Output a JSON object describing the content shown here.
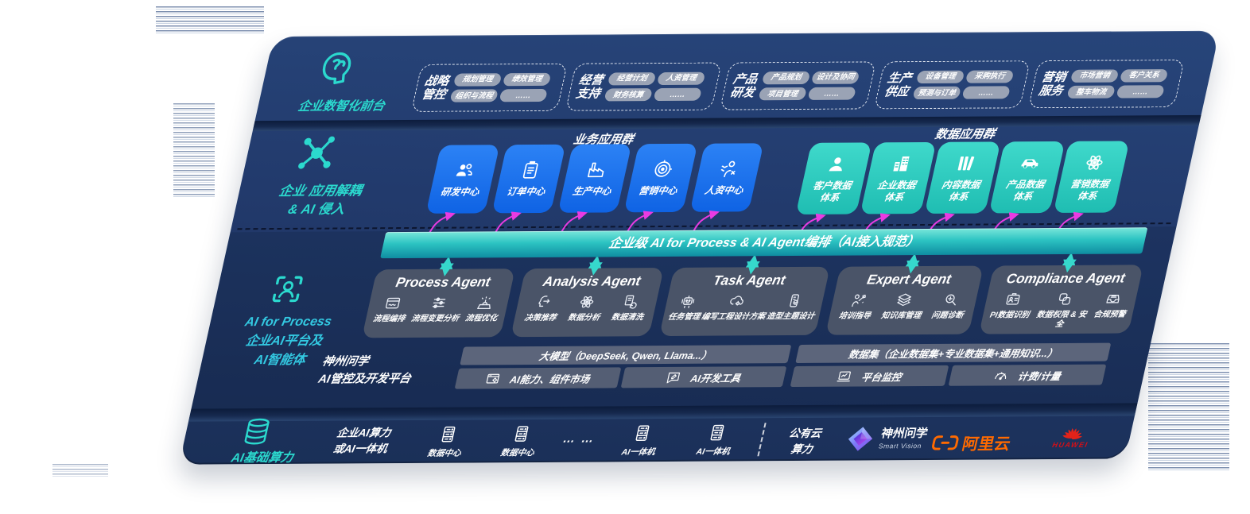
{
  "colors": {
    "navy": "#203A69",
    "teal_accent": "#2BD9CE",
    "blue_box": "#1570EF",
    "teal_box": "#2CCFC2",
    "magenta_arrow": "#EA3BE2",
    "bar_teal": "#2CC3C2",
    "panel_gray": "#4A5468",
    "chip_gray": "#9AA3B5",
    "alicloud_orange": "#FF6A00",
    "huawei_red": "#DA0E15"
  },
  "front_layer": {
    "label": "企业数智化前台",
    "icon": "brain-head-icon",
    "groups": [
      {
        "title": "战略\n管控",
        "items": [
          "规划管理",
          "绩效管理",
          "组织与流程",
          "……"
        ]
      },
      {
        "title": "经营\n支持",
        "items": [
          "经营计划",
          "人资管理",
          "财务核算",
          "……"
        ]
      },
      {
        "title": "产品\n研发",
        "items": [
          "产品规划",
          "设计及协同",
          "项目管理",
          "……"
        ]
      },
      {
        "title": "生产\n供应",
        "items": [
          "设备管理",
          "采购执行",
          "预测与订单",
          "……"
        ]
      },
      {
        "title": "营销\n服务",
        "items": [
          "市场营销",
          "客户关系",
          "整车物流",
          "……"
        ]
      }
    ]
  },
  "decouple_layer": {
    "label": "企业 应用解耦\n& AI 侵入",
    "icon": "molecule-icon",
    "business_group_title": "业务应用群",
    "data_group_title": "数据应用群",
    "business_apps": [
      {
        "label": "研发中心",
        "icon": "team-icon"
      },
      {
        "label": "订单中心",
        "icon": "clipboard-icon"
      },
      {
        "label": "生产中心",
        "icon": "factory-icon"
      },
      {
        "label": "营销中心",
        "icon": "target-icon"
      },
      {
        "label": "人资中心",
        "icon": "hr-icon"
      }
    ],
    "data_apps": [
      {
        "label": "客户数据\n体系",
        "icon": "user-icon"
      },
      {
        "label": "企业数据\n体系",
        "icon": "building-icon"
      },
      {
        "label": "内容数据\n体系",
        "icon": "content-icon"
      },
      {
        "label": "产品数据\n体系",
        "icon": "car-icon"
      },
      {
        "label": "营销数据\n体系",
        "icon": "atom-icon"
      }
    ]
  },
  "ai_bar": {
    "label": "企业级 AI for Process & AI Agent编排（AI接入规范）"
  },
  "process_layer": {
    "label": "AI for Process\n企业AI平台及\nAI智能体",
    "icon": "agent-frame-icon",
    "agents": [
      {
        "title": "Process Agent",
        "items": [
          {
            "label": "流程编排",
            "icon": "workflow-icon"
          },
          {
            "label": "流程变更分析",
            "icon": "sliders-icon"
          },
          {
            "label": "流程优化",
            "icon": "broom-icon"
          }
        ]
      },
      {
        "title": "Analysis Agent",
        "items": [
          {
            "label": "决策推荐",
            "icon": "decision-icon"
          },
          {
            "label": "数据分析",
            "icon": "atom-icon"
          },
          {
            "label": "数据清洗",
            "icon": "doc-clean-icon"
          }
        ]
      },
      {
        "title": "Task Agent",
        "items": [
          {
            "label": "任务管理",
            "icon": "robot-icon"
          },
          {
            "label": "编写工程设计方案",
            "icon": "cloud-gear-icon"
          },
          {
            "label": "造型主题设计",
            "icon": "phone-check-icon"
          }
        ]
      },
      {
        "title": "Expert Agent",
        "items": [
          {
            "label": "培训指导",
            "icon": "trainer-icon"
          },
          {
            "label": "知识库管理",
            "icon": "layers-icon"
          },
          {
            "label": "问题诊断",
            "icon": "diagnose-icon"
          }
        ]
      },
      {
        "title": "Compliance Agent",
        "items": [
          {
            "label": "PI数据识别",
            "icon": "id-card-icon"
          },
          {
            "label": "数据权限 & 安全",
            "icon": "shield-link-icon"
          },
          {
            "label": "合规预警",
            "icon": "inbox-alert-icon"
          }
        ]
      }
    ]
  },
  "platform": {
    "label": "神州问学\nAI管控及开发平台",
    "model_header": "大模型（DeepSeek, Qwen, Llama...）",
    "dataset_header": "数据集（企业数据集+专业数据集+通用知识...）",
    "cells": [
      {
        "label": "AI能力、组件市场",
        "icon": "window-gear-icon"
      },
      {
        "label": "AI开发工具",
        "icon": "chat-tool-icon"
      },
      {
        "label": "平台监控",
        "icon": "monitor-icon"
      },
      {
        "label": "计费/计量",
        "icon": "gauge-icon"
      }
    ]
  },
  "infra_layer": {
    "label": "AI基础算力",
    "icon": "database-icon",
    "compute_label": "企业AI算力\n或AI一体机",
    "nodes": [
      {
        "label": "数据中心",
        "icon": "server-icon"
      },
      {
        "label": "数据中心",
        "icon": "server-icon"
      },
      {
        "label": "AI一体机",
        "icon": "server-icon"
      },
      {
        "label": "AI一体机",
        "icon": "server-icon"
      }
    ],
    "ellipsis": "… …",
    "cloud_label": "公有云\n算力",
    "vendors": [
      {
        "name": "神州问学",
        "subtitle": "Smart Vision",
        "icon": "shenzhou-logo-icon"
      },
      {
        "name": "阿里云",
        "icon": "alicloud-logo-icon"
      },
      {
        "name": "HUAWEI",
        "icon": "huawei-logo-icon"
      }
    ]
  }
}
